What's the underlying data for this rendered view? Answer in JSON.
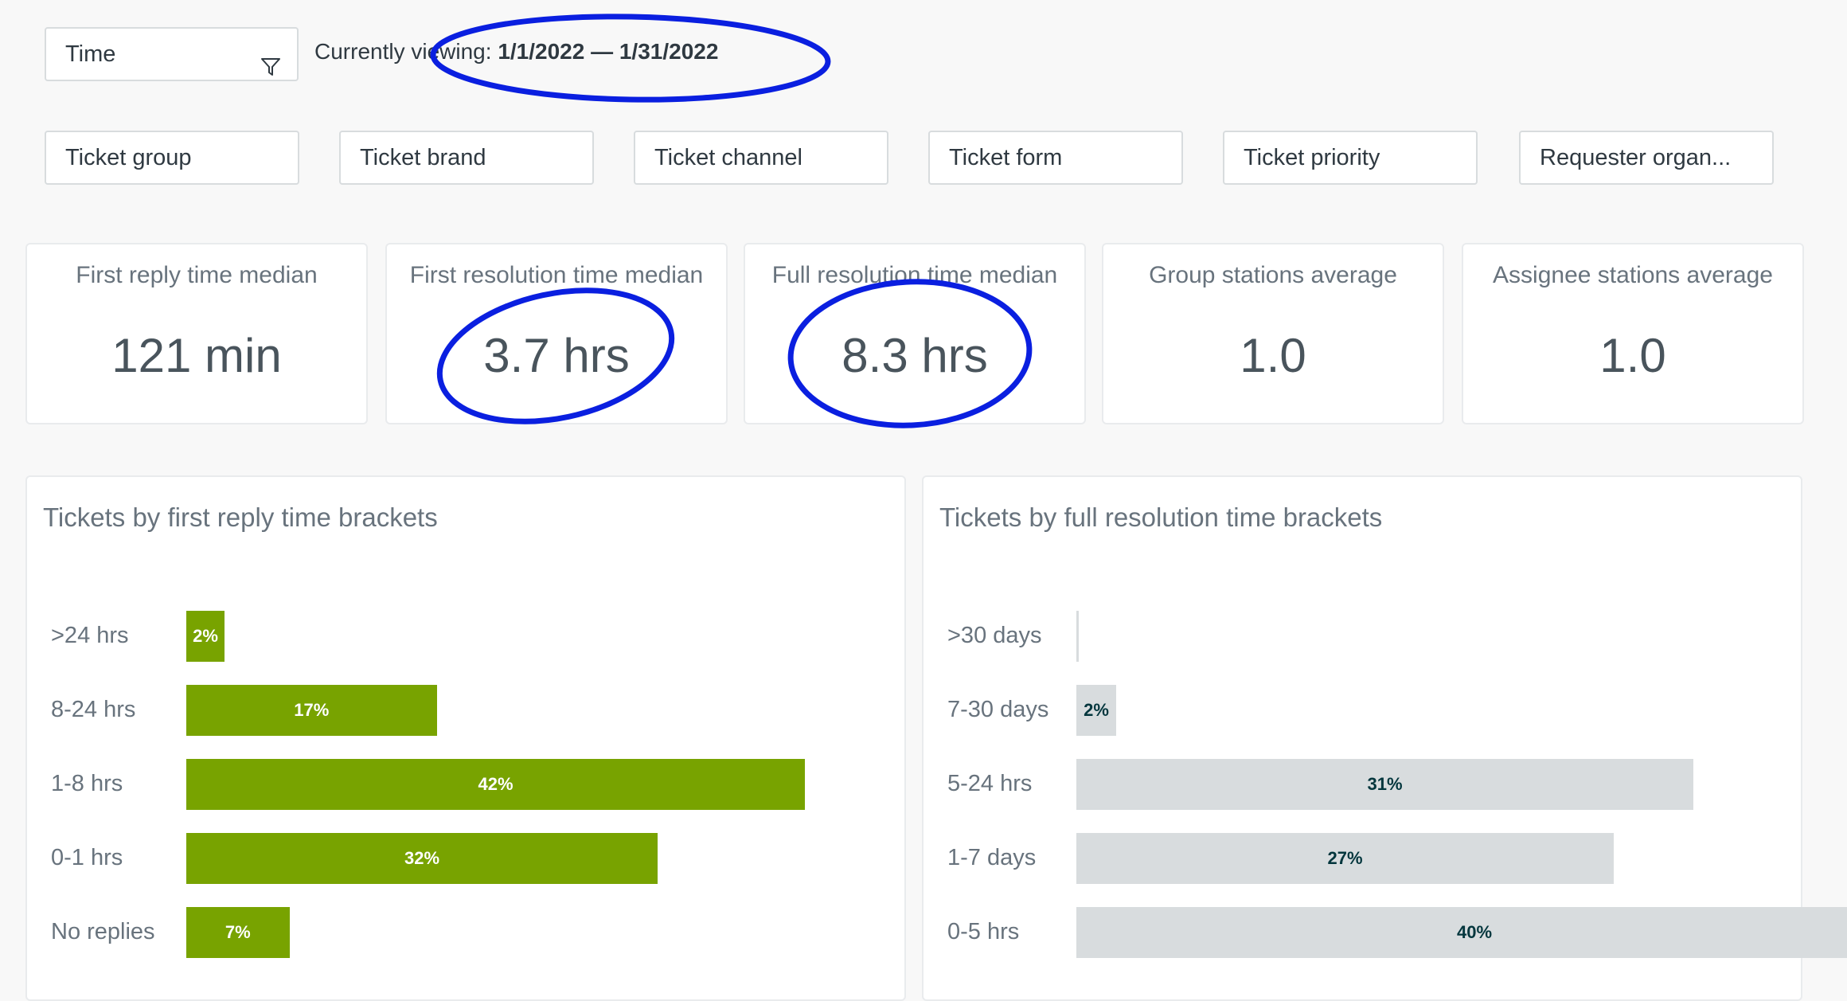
{
  "time_filter": {
    "label": "Time",
    "icon": "filter-icon"
  },
  "viewing": {
    "prefix": "Currently viewing: ",
    "range": "1/1/2022 — 1/31/2022"
  },
  "filters": [
    "Ticket group",
    "Ticket brand",
    "Ticket channel",
    "Ticket form",
    "Ticket priority",
    "Requester organ..."
  ],
  "metrics": [
    {
      "label": "First reply time median",
      "value": "121 min"
    },
    {
      "label": "First resolution time median",
      "value": "3.7 hrs"
    },
    {
      "label": "Full resolution time median",
      "value": "8.3 hrs"
    },
    {
      "label": "Group stations average",
      "value": "1.0"
    },
    {
      "label": "Assignee stations average",
      "value": "1.0"
    }
  ],
  "colors": {
    "green_bar": "#78a300",
    "grey_bar": "#d8dcde",
    "annotation": "#0a1fe0"
  },
  "chart_data": [
    {
      "type": "bar",
      "orientation": "horizontal",
      "title": "Tickets by first reply time brackets",
      "categories": [
        ">24 hrs",
        "8-24 hrs",
        "1-8 hrs",
        "0-1 hrs",
        "No replies"
      ],
      "values": [
        2,
        17,
        42,
        32,
        7
      ],
      "value_labels": [
        "2%",
        "17%",
        "42%",
        "32%",
        "7%"
      ],
      "unit": "%"
    },
    {
      "type": "bar",
      "orientation": "horizontal",
      "title": "Tickets by full resolution time brackets",
      "categories": [
        ">30 days",
        "7-30 days",
        "5-24 hrs",
        "1-7 days",
        "0-5 hrs"
      ],
      "values": [
        0,
        2,
        31,
        27,
        40
      ],
      "value_labels": [
        "",
        "2%",
        "31%",
        "27%",
        "40%"
      ],
      "unit": "%"
    }
  ]
}
